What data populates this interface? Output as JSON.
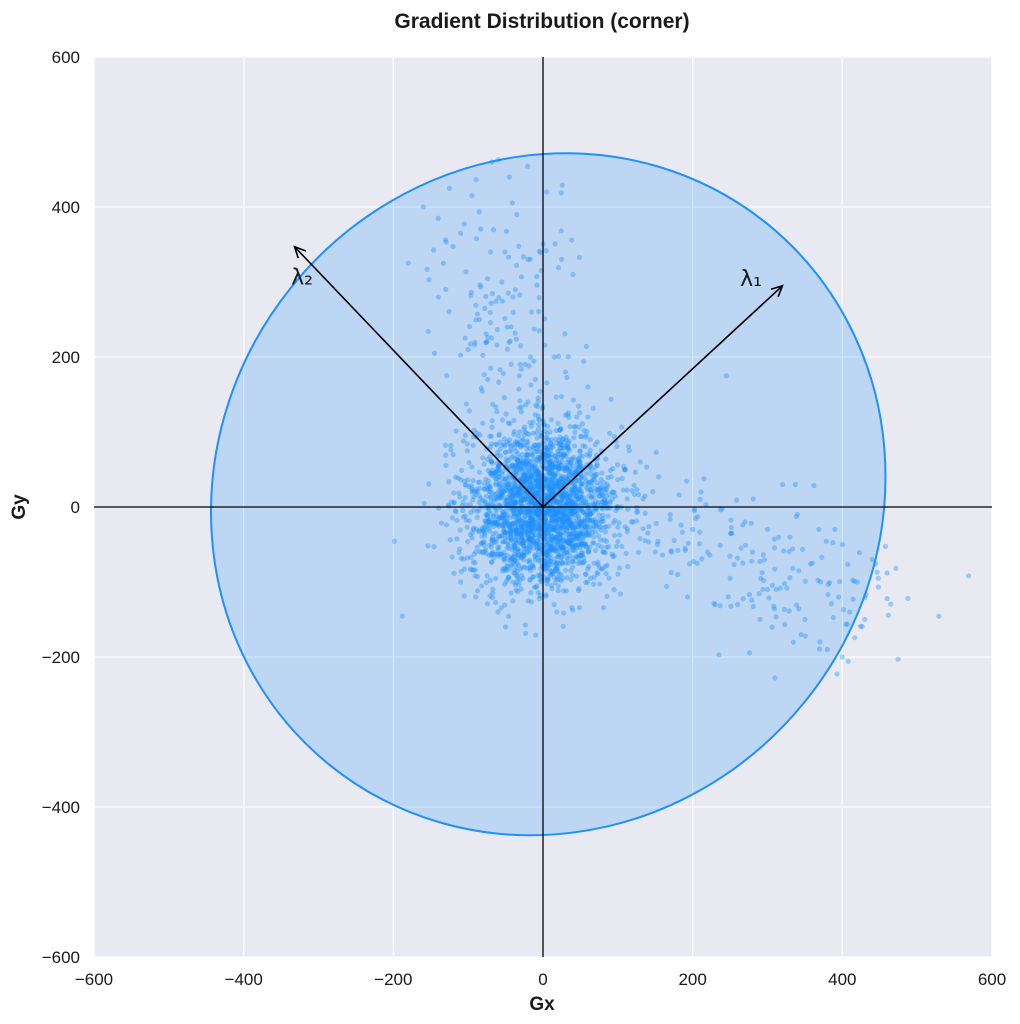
{
  "chart_data": {
    "type": "scatter",
    "title": "Gradient Distribution (corner)",
    "xlabel": "Gx",
    "ylabel": "Gy",
    "xlim": [
      -600,
      600
    ],
    "ylim": [
      -600,
      600
    ],
    "xticks": [
      -600,
      -400,
      -200,
      0,
      200,
      400,
      600
    ],
    "yticks": [
      -600,
      -400,
      -200,
      0,
      200,
      400,
      600
    ],
    "xtick_labels": [
      "−600",
      "−400",
      "−200",
      "0",
      "200",
      "400",
      "600"
    ],
    "ytick_labels": [
      "−600",
      "−400",
      "−200",
      "0",
      "200",
      "400",
      "600"
    ],
    "grid": true,
    "background": "#e9e9f1",
    "point_color": "#1e90ff",
    "ellipse": {
      "center": [
        7,
        17
      ],
      "semi_axis_1": 465,
      "semi_axis_2": 440,
      "angle_deg": -51,
      "fill": "#1e90ff",
      "fill_opacity": 0.22,
      "stroke": "#1e90ff"
    },
    "eigenvectors": [
      {
        "label": "λ₁",
        "from": [
          0,
          0
        ],
        "to": [
          320,
          295
        ],
        "label_at": [
          278,
          295
        ]
      },
      {
        "label": "λ₂",
        "from": [
          0,
          0
        ],
        "to": [
          -332,
          347
        ],
        "label_at": [
          -322,
          297
        ]
      }
    ],
    "axes_lines": {
      "x0": 0,
      "y0": 0,
      "color": "#000000"
    },
    "clusters": [
      {
        "center": [
          0,
          0
        ],
        "sigma": [
          48,
          52
        ],
        "count": 2600,
        "rotation_deg": 0
      },
      {
        "center": [
          -60,
          260
        ],
        "sigma": [
          45,
          95
        ],
        "count": 130,
        "rotation_deg": 0
      },
      {
        "center": [
          300,
          -80
        ],
        "sigma": [
          110,
          45
        ],
        "count": 150,
        "rotation_deg": -22
      }
    ],
    "points": [
      [
        -68,
        460
      ],
      [
        460,
        -88
      ],
      [
        460,
        -122
      ],
      [
        448,
        -95
      ],
      [
        320,
        30
      ],
      [
        245,
        175
      ],
      [
        -145,
        205
      ],
      [
        -180,
        325
      ],
      [
        -125,
        425
      ],
      [
        400,
        -200
      ],
      [
        380,
        -190
      ],
      [
        310,
        -228
      ],
      [
        235,
        -197
      ],
      [
        -50,
        -160
      ],
      [
        -120,
        70
      ],
      [
        150,
        -60
      ],
      [
        -35,
        390
      ],
      [
        -20,
        330
      ],
      [
        -55,
        300
      ],
      [
        -85,
        250
      ],
      [
        -100,
        210
      ],
      [
        -30,
        215
      ],
      [
        -5,
        235
      ],
      [
        5,
        420
      ],
      [
        -45,
        440
      ],
      [
        -95,
        415
      ],
      [
        -160,
        400
      ],
      [
        -140,
        385
      ],
      [
        -110,
        365
      ],
      [
        -70,
        340
      ],
      [
        -40,
        280
      ],
      [
        -15,
        260
      ],
      [
        15,
        200
      ],
      [
        30,
        180
      ],
      [
        -10,
        170
      ],
      [
        25,
        330
      ],
      [
        40,
        310
      ],
      [
        60,
        160
      ],
      [
        -70,
        185
      ],
      [
        -130,
        290
      ],
      [
        280,
        -60
      ],
      [
        330,
        -40
      ],
      [
        360,
        -75
      ],
      [
        395,
        -120
      ],
      [
        410,
        -140
      ],
      [
        350,
        -150
      ],
      [
        300,
        -110
      ],
      [
        250,
        -95
      ],
      [
        220,
        -60
      ],
      [
        200,
        -30
      ],
      [
        180,
        -90
      ],
      [
        260,
        -130
      ],
      [
        290,
        -150
      ],
      [
        370,
        -180
      ],
      [
        420,
        -100
      ],
      [
        440,
        -70
      ],
      [
        230,
        -130
      ],
      [
        190,
        -55
      ],
      [
        170,
        -10
      ],
      [
        210,
        10
      ],
      [
        300,
        -30
      ],
      [
        340,
        -10
      ],
      [
        270,
        -20
      ],
      [
        390,
        -30
      ],
      [
        400,
        -50
      ],
      [
        430,
        -150
      ],
      [
        120,
        -20
      ],
      [
        110,
        50
      ],
      [
        130,
        60
      ],
      [
        95,
        -110
      ],
      [
        -90,
        -120
      ],
      [
        -110,
        -100
      ],
      [
        -60,
        -140
      ],
      [
        15,
        -130
      ],
      [
        60,
        120
      ],
      [
        -20,
        140
      ],
      [
        -70,
        80
      ],
      [
        80,
        -60
      ],
      [
        -95,
        20
      ],
      [
        100,
        0
      ]
    ]
  }
}
